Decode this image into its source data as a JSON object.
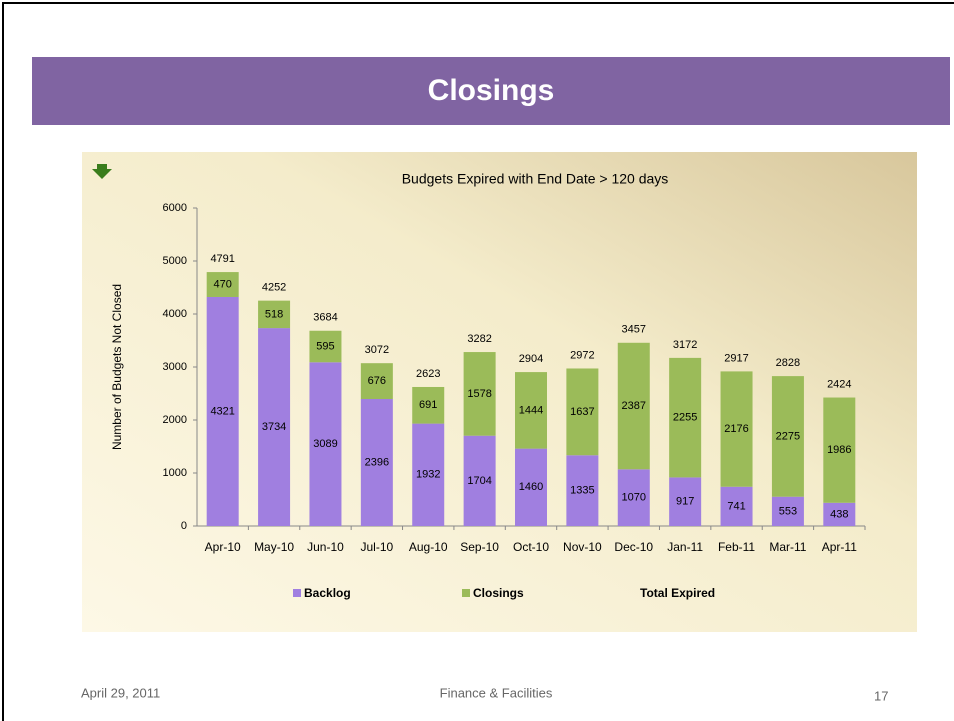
{
  "slide_title": "Closings",
  "footer": {
    "date": "April 29, 2011",
    "center": "Finance & Facilities",
    "page": "17"
  },
  "chart_data": {
    "type": "stacked-bar",
    "title": "Budgets Expired with End Date > 120 days",
    "y_label": "Number of Budgets Not Closed",
    "categories": [
      "Apr-10",
      "May-10",
      "Jun-10",
      "Jul-10",
      "Aug-10",
      "Sep-10",
      "Oct-10",
      "Nov-10",
      "Dec-10",
      "Jan-11",
      "Feb-11",
      "Mar-11",
      "Apr-11"
    ],
    "series": [
      {
        "name": "Backlog",
        "color": "#a07fe0",
        "values": [
          4321,
          3734,
          3089,
          2396,
          1932,
          1704,
          1460,
          1335,
          1070,
          917,
          741,
          553,
          438
        ]
      },
      {
        "name": "Closings",
        "color": "#9bbb59",
        "values": [
          470,
          518,
          595,
          676,
          691,
          1578,
          1444,
          1637,
          2387,
          2255,
          2176,
          2275,
          1986
        ]
      }
    ],
    "totals": {
      "name": "Total Expired",
      "values": [
        4791,
        4252,
        3684,
        3072,
        2623,
        3282,
        2904,
        2972,
        3457,
        3172,
        2917,
        2828,
        2424
      ]
    },
    "ylim": [
      0,
      6000
    ],
    "yticks": [
      0,
      1000,
      2000,
      3000,
      4000,
      5000,
      6000
    ]
  }
}
